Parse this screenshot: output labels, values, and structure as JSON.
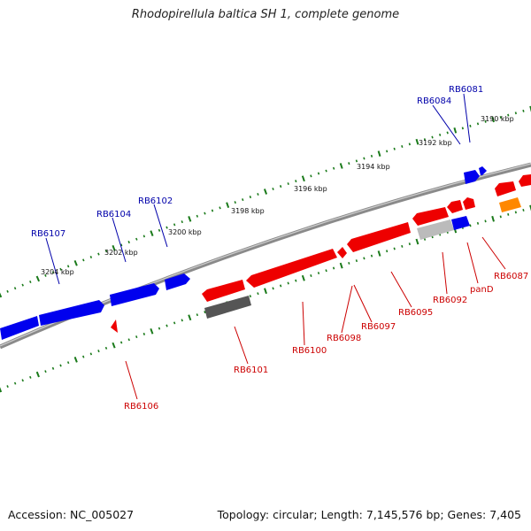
{
  "title": "Rhodopirellula baltica SH 1, complete genome",
  "footer": {
    "accession": "Accession: NC_005027",
    "topology": "Topology: circular; Length: 7,145,576 bp; Genes: 7,405"
  },
  "colors": {
    "forward_gene": "#0000ee",
    "reverse_gene": "#ee0000",
    "grey_gene": "#555555",
    "light_grey_gene": "#bbbbbb",
    "orange_gene": "#ff8800",
    "tick": "#1a7a1a",
    "backbone": "#8a8a8a",
    "forward_label": "#0000aa",
    "reverse_label": "#cc0000"
  },
  "tick_labels": [
    "3190 kbp",
    "3192 kbp",
    "3194 kbp",
    "3196 kbp",
    "3198 kbp",
    "3200 kbp",
    "3202 kbp",
    "3204 kbp"
  ],
  "forward_genes": [
    "RB6081",
    "RB6084",
    "RB6102",
    "RB6104",
    "RB6107"
  ],
  "reverse_genes": [
    "RB6087",
    "panD",
    "RB6092",
    "RB6095",
    "RB6097",
    "RB6098",
    "RB6100",
    "RB6101",
    "RB6106"
  ]
}
